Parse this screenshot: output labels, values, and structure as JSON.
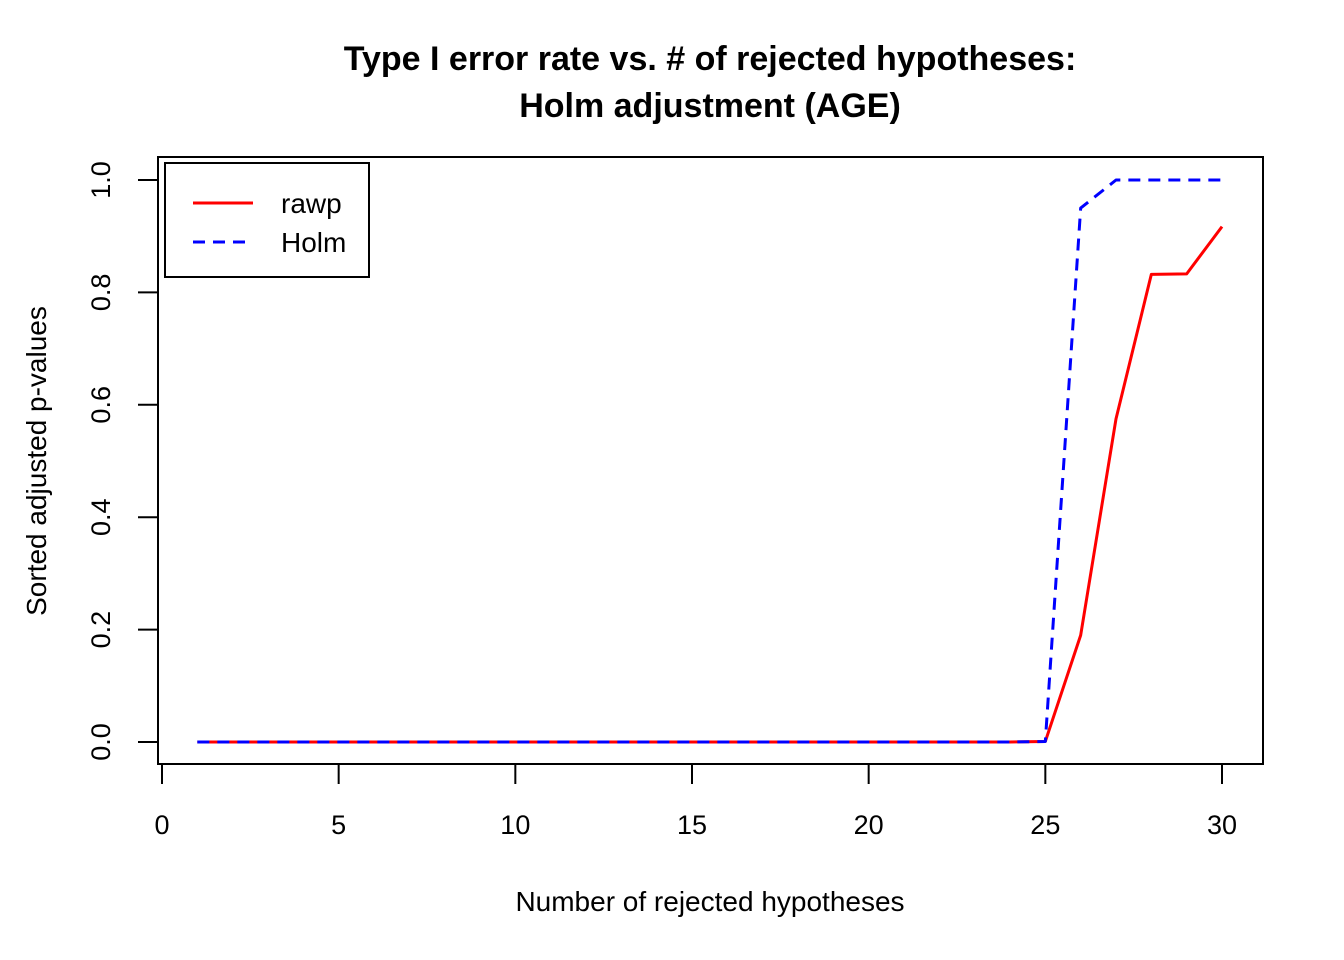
{
  "chart_data": {
    "type": "line",
    "title": "Type I error rate vs. # of rejected hypotheses:",
    "subtitle": "Holm adjustment (AGE)",
    "xlabel": "Number of rejected hypotheses",
    "ylabel": "Sorted adjusted p-values",
    "xlim": [
      0,
      30
    ],
    "ylim": [
      0,
      1
    ],
    "x_ticks": [
      0,
      5,
      10,
      15,
      20,
      25,
      30
    ],
    "y_ticks": [
      0.0,
      0.2,
      0.4,
      0.6,
      0.8,
      1.0
    ],
    "x_tick_labels": [
      "0",
      "5",
      "10",
      "15",
      "20",
      "25",
      "30"
    ],
    "y_tick_labels": [
      "0.0",
      "0.2",
      "0.4",
      "0.6",
      "0.8",
      "1.0"
    ],
    "grid": false,
    "legend_position": "top-left",
    "x": [
      1,
      2,
      3,
      4,
      5,
      6,
      7,
      8,
      9,
      10,
      11,
      12,
      13,
      14,
      15,
      16,
      17,
      18,
      19,
      20,
      21,
      22,
      23,
      24,
      25,
      26,
      27,
      28,
      29,
      30
    ],
    "series": [
      {
        "name": "rawp",
        "color": "#ff0000",
        "dash": "solid",
        "values": [
          0,
          0,
          0,
          0,
          0,
          0,
          0,
          0,
          0,
          0,
          0,
          0,
          0,
          0,
          0,
          0,
          0,
          0,
          0,
          0,
          0,
          0,
          0,
          0,
          0.001,
          0.19,
          0.575,
          0.832,
          0.833,
          0.917
        ]
      },
      {
        "name": "Holm",
        "color": "#0000ff",
        "dash": "dashed",
        "values": [
          0,
          0,
          0,
          0,
          0,
          0,
          0,
          0,
          0,
          0,
          0,
          0,
          0,
          0,
          0,
          0,
          0,
          0,
          0,
          0,
          0,
          0,
          0,
          0,
          0.001,
          0.95,
          1.0,
          1.0,
          1.0,
          1.0
        ]
      }
    ]
  }
}
